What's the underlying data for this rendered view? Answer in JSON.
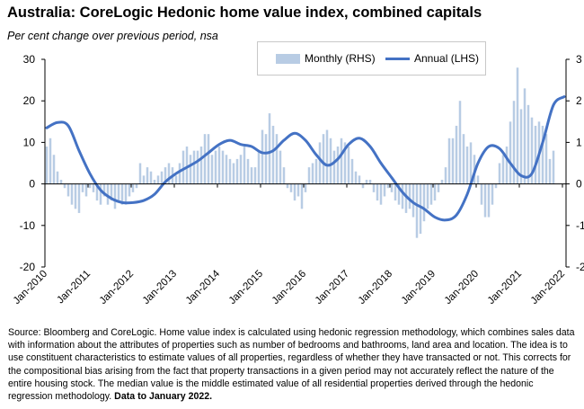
{
  "title": "Australia: CoreLogic Hedonic home value index, combined capitals",
  "subtitle": "Per cent change over previous period, nsa",
  "legend": {
    "monthly": "Monthly (RHS)",
    "annual": "Annual (LHS)"
  },
  "source": {
    "text": "Source: Bloomberg and CoreLogic. Home value index is calculated using hedonic regression methodology, which combines sales data with information about the attributes of properties such as number of bedrooms and bathrooms, land area and location. The idea is to use constituent characteristics to estimate values of all properties, regardless of whether they have transacted or not.  This corrects for the compositional bias arising from the fact that property transactions in a given period may not accurately reflect the nature of the entire housing stock.  The median value is the middle estimated value of all residential properties derived through the hedonic regression methodology. ",
    "bold": "Data to January 2022."
  },
  "colors": {
    "monthly": "#b8cce4",
    "annual": "#4472c4",
    "axis": "#000000",
    "grid": "#d9d9d9"
  },
  "chart_data": {
    "type": "bar",
    "title": "Australia: CoreLogic Hedonic home value index, combined capitals",
    "subtitle": "Per cent change over previous period, nsa",
    "grid": false,
    "legend_position": "top-right",
    "x_tick_labels": [
      "Jan-2010",
      "Jan-2011",
      "Jan-2012",
      "Jan-2013",
      "Jan-2014",
      "Jan-2015",
      "Jan-2016",
      "Jan-2017",
      "Jan-2018",
      "Jan-2019",
      "Jan-2020",
      "Jan-2021",
      "Jan-2022"
    ],
    "left_axis": {
      "ylim": [
        -20,
        30
      ],
      "ticks": [
        "-20",
        "-10",
        "0",
        "10",
        "20",
        "30"
      ]
    },
    "right_axis": {
      "ylim": [
        -2,
        3
      ],
      "ticks": [
        "-2",
        "-1",
        "0",
        "1",
        "2",
        "3"
      ]
    },
    "x_start": "Jan-2010",
    "x_end": "Jan-2022",
    "series": [
      {
        "name": "Monthly (RHS)",
        "type": "bar",
        "axis": "right",
        "values": [
          0.9,
          1.1,
          0.7,
          0.3,
          0.1,
          -0.1,
          -0.3,
          -0.5,
          -0.6,
          -0.7,
          -0.2,
          -0.3,
          -0.1,
          -0.2,
          -0.4,
          -0.5,
          -0.3,
          -0.5,
          -0.4,
          -0.6,
          -0.4,
          -0.5,
          -0.5,
          -0.3,
          -0.2,
          -0.1,
          0.5,
          0.2,
          0.4,
          0.3,
          0.1,
          0.2,
          0.3,
          0.4,
          0.5,
          0.4,
          0.2,
          0.5,
          0.8,
          0.9,
          0.7,
          0.8,
          0.8,
          0.9,
          1.2,
          1.2,
          0.7,
          0.8,
          0.9,
          0.8,
          0.7,
          0.6,
          0.5,
          0.6,
          0.7,
          0.9,
          0.6,
          0.4,
          0.4,
          0.8,
          1.3,
          1.2,
          1.7,
          1.4,
          1.2,
          0.8,
          0.4,
          -0.1,
          -0.2,
          -0.4,
          -0.3,
          -0.6,
          -0.2,
          0.4,
          0.5,
          0.6,
          1.0,
          1.2,
          1.3,
          1.1,
          0.8,
          0.9,
          1.1,
          1.0,
          0.9,
          0.6,
          0.3,
          0.2,
          -0.1,
          0.1,
          0.1,
          -0.2,
          -0.4,
          -0.5,
          -0.3,
          -0.1,
          -0.2,
          -0.4,
          -0.5,
          -0.6,
          -0.7,
          -0.6,
          -0.8,
          -1.3,
          -1.2,
          -0.9,
          -0.6,
          -0.5,
          -0.4,
          -0.2,
          0.1,
          0.4,
          1.1,
          1.1,
          1.4,
          2.0,
          1.2,
          0.9,
          1.0,
          0.7,
          0.2,
          -0.5,
          -0.8,
          -0.8,
          -0.5,
          -0.1,
          0.5,
          0.7,
          0.9,
          1.5,
          2.0,
          2.8,
          1.8,
          2.3,
          1.9,
          1.6,
          1.4,
          1.5,
          1.4,
          1.2,
          0.6,
          0.8
        ]
      },
      {
        "name": "Annual (LHS)",
        "type": "line",
        "axis": "left",
        "x": [
          0,
          3,
          6,
          9,
          12,
          15,
          18,
          21,
          24,
          27,
          30,
          33,
          36,
          39,
          42,
          45,
          48,
          51,
          54,
          57,
          60,
          63,
          66,
          69,
          72,
          75,
          78,
          81,
          84,
          87,
          90,
          93,
          96,
          99,
          102,
          105,
          108,
          111,
          114,
          117,
          120,
          123,
          126,
          129,
          132,
          135,
          138,
          141,
          144
        ],
        "values": [
          13.5,
          14.8,
          14,
          8,
          2.5,
          -1.5,
          -3.5,
          -4.5,
          -4.5,
          -4.0,
          -2.5,
          0.5,
          2.5,
          4,
          5.5,
          7.5,
          9.5,
          10.5,
          9.5,
          9,
          7.5,
          8,
          10.5,
          12.2,
          10.5,
          7,
          4.5,
          6,
          9.5,
          11,
          9,
          5,
          1.5,
          -2,
          -4.5,
          -6,
          -8,
          -8.7,
          -7.5,
          -2.5,
          5,
          9,
          8.5,
          5,
          2,
          2.5,
          10,
          19,
          21
        ]
      }
    ]
  }
}
